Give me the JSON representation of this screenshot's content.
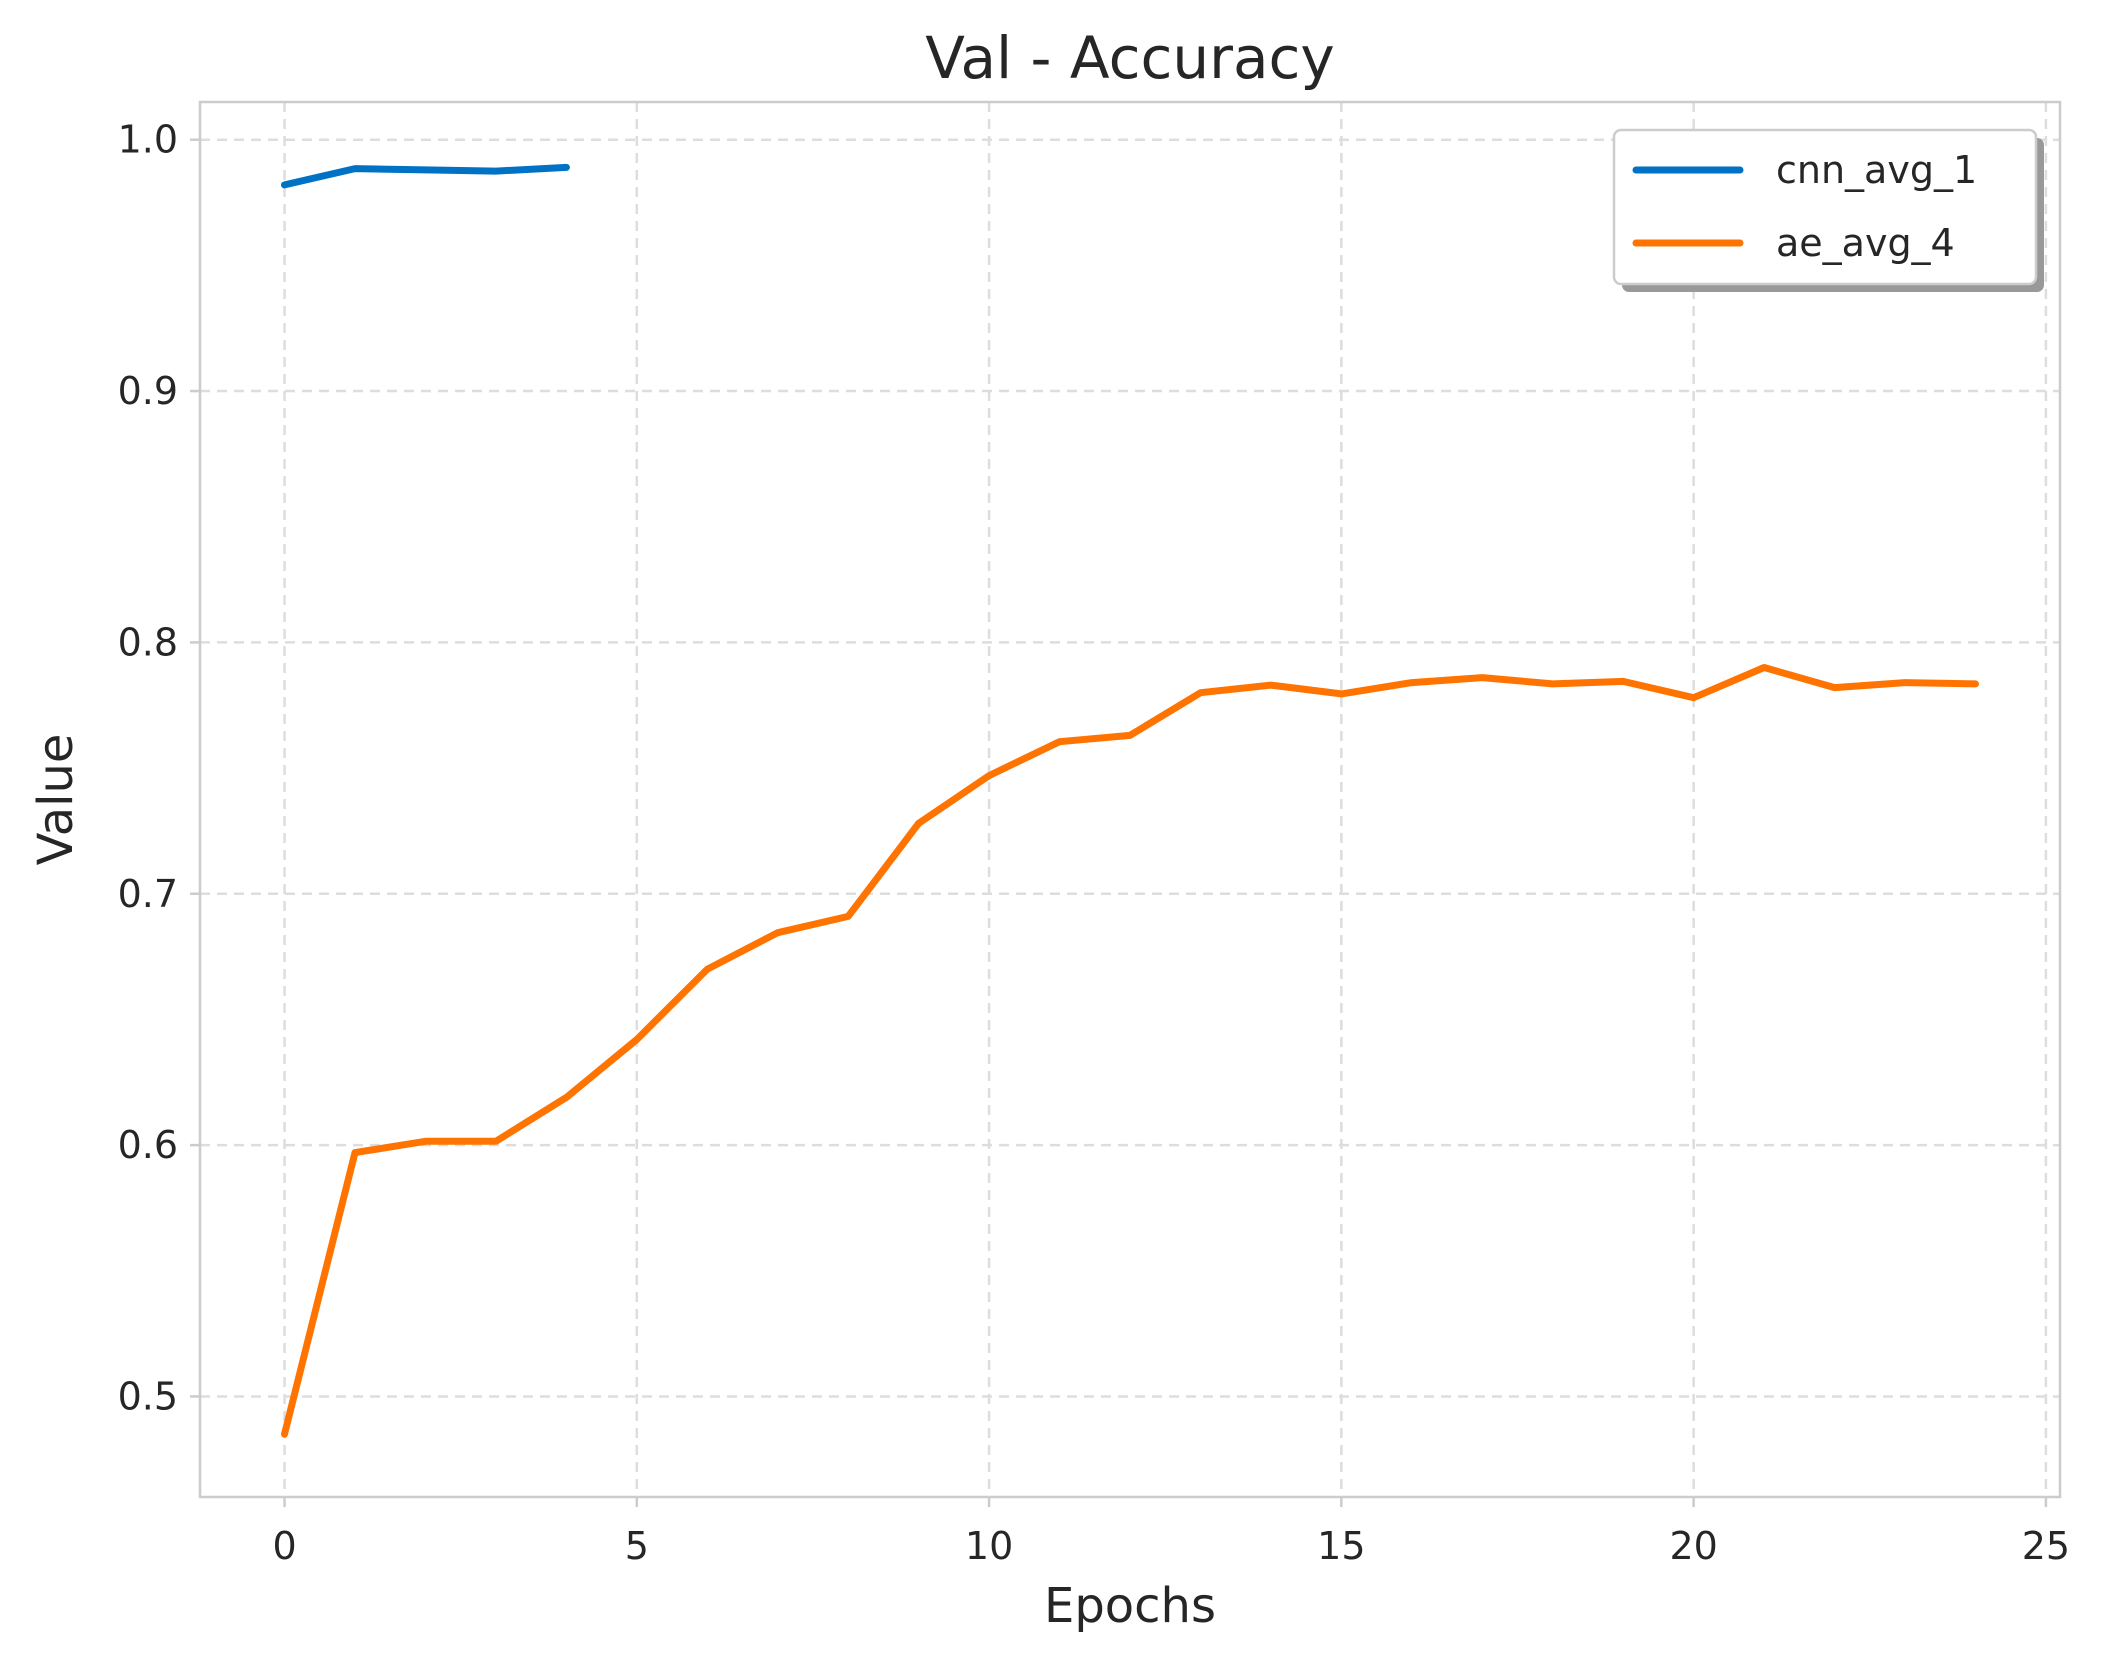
{
  "chart_data": {
    "type": "line",
    "title": "Val - Accuracy",
    "xlabel": "Epochs",
    "ylabel": "Value",
    "xlim": [
      -1.2,
      25.2
    ],
    "ylim": [
      0.46,
      1.015
    ],
    "xticks": [
      0,
      5,
      10,
      15,
      20,
      25
    ],
    "yticks": [
      0.5,
      0.6,
      0.7,
      0.8,
      0.9,
      1.0
    ],
    "xtick_labels": [
      "0",
      "5",
      "10",
      "15",
      "20",
      "25"
    ],
    "ytick_labels": [
      "0.5",
      "0.6",
      "0.7",
      "0.8",
      "0.9",
      "1.0"
    ],
    "grid": true,
    "legend_position": "top-right",
    "series": [
      {
        "name": "cnn_avg_1",
        "color": "#0072C6",
        "x": [
          0,
          1,
          2,
          3,
          4
        ],
        "values": [
          0.982,
          0.9885,
          0.988,
          0.9875,
          0.989
        ]
      },
      {
        "name": "ae_avg_4",
        "color": "#FF7400",
        "x": [
          0,
          1,
          2,
          3,
          4,
          5,
          6,
          7,
          8,
          9,
          10,
          11,
          12,
          13,
          14,
          15,
          16,
          17,
          18,
          19,
          20,
          21,
          22,
          23,
          24
        ],
        "values": [
          0.485,
          0.597,
          0.6015,
          0.6015,
          0.619,
          0.642,
          0.67,
          0.6845,
          0.691,
          0.728,
          0.747,
          0.7605,
          0.763,
          0.78,
          0.783,
          0.7795,
          0.784,
          0.786,
          0.7835,
          0.7845,
          0.778,
          0.79,
          0.782,
          0.784,
          0.7835
        ]
      }
    ]
  }
}
